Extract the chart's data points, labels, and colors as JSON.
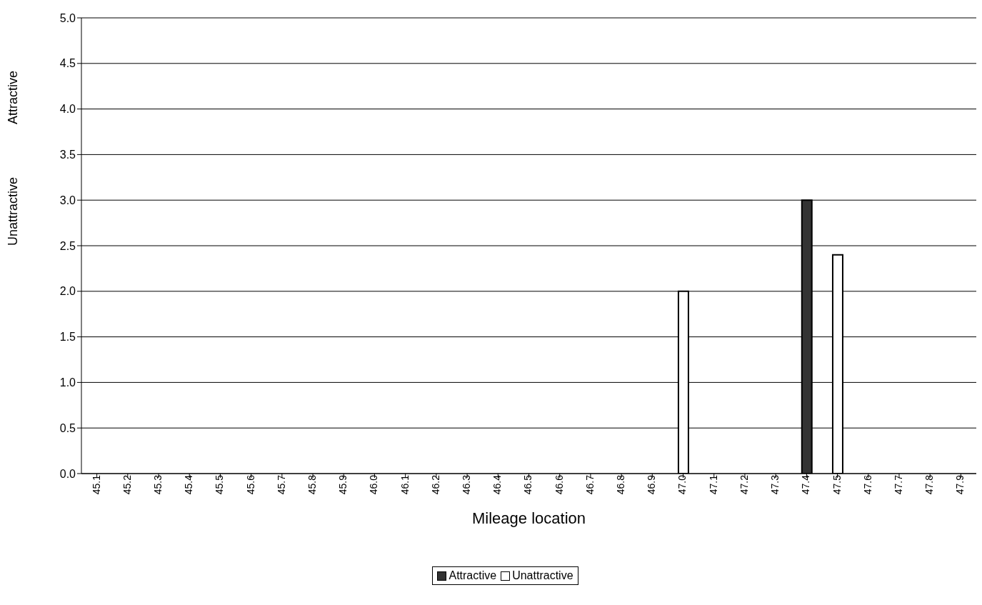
{
  "chart_data": {
    "type": "bar",
    "xlabel": "Mileage location",
    "ylabel": "Unattractive Attractive",
    "categories": [
      "45.1",
      "45.2",
      "45.3",
      "45.4",
      "45.5",
      "45.6",
      "45.7",
      "45.8",
      "45.9",
      "46.0",
      "46.1",
      "46.2",
      "46.3",
      "46.4",
      "46.5",
      "46.6",
      "46.7",
      "46.8",
      "46.9",
      "47.0",
      "47.1",
      "47.2",
      "47.3",
      "47.4",
      "47.5",
      "47.6",
      "47.7",
      "47.8",
      "47.9"
    ],
    "series": [
      {
        "name": "Attractive",
        "color": "#333333",
        "values": [
          null,
          null,
          null,
          null,
          null,
          null,
          null,
          null,
          null,
          null,
          null,
          null,
          null,
          null,
          null,
          null,
          null,
          null,
          null,
          null,
          null,
          null,
          null,
          3.0,
          null,
          null,
          null,
          null,
          null
        ]
      },
      {
        "name": "Unattractive",
        "color": "#ffffff",
        "values": [
          null,
          null,
          null,
          null,
          null,
          null,
          null,
          null,
          null,
          null,
          null,
          null,
          null,
          null,
          null,
          null,
          null,
          null,
          null,
          2.0,
          null,
          null,
          null,
          null,
          2.4,
          null,
          null,
          null,
          null
        ]
      }
    ],
    "ylim": [
      0,
      5
    ],
    "yticks": [
      {
        "value": 0,
        "label": "0.0"
      },
      {
        "value": 0.5,
        "label": "0.5"
      },
      {
        "value": 1,
        "label": "1.0"
      },
      {
        "value": 1.5,
        "label": "1.5"
      },
      {
        "value": 2,
        "label": "2.0"
      },
      {
        "value": 2.5,
        "label": "2.5"
      },
      {
        "value": 3,
        "label": "3.0"
      },
      {
        "value": 3.5,
        "label": "3.5"
      },
      {
        "value": 4,
        "label": "4.0"
      },
      {
        "value": 4.5,
        "label": "4.5"
      },
      {
        "value": 5,
        "label": "5.0"
      }
    ],
    "grid": "y",
    "legend": "bottom"
  }
}
